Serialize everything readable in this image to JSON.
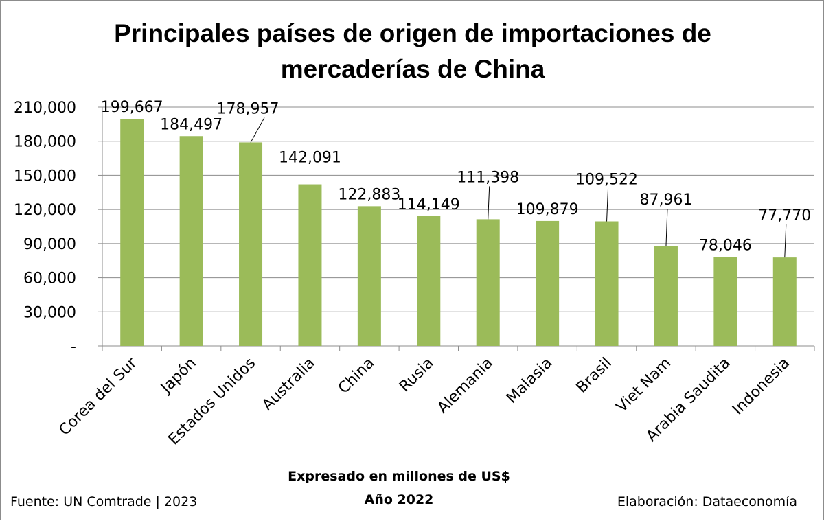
{
  "chart_data": {
    "type": "bar",
    "title_lines": [
      "Principales países de origen de importaciones de",
      "mercaderías de China"
    ],
    "categories": [
      "Corea del Sur",
      "Japón",
      "Estados Unidos",
      "Australia",
      "China",
      "Rusia",
      "Alemania",
      "Malasia",
      "Brasil",
      "Viet Nam",
      "Arabia Saudita",
      "Indonesia"
    ],
    "values": [
      199667,
      184497,
      178957,
      142091,
      122883,
      114149,
      111398,
      109879,
      109522,
      87961,
      78046,
      77770
    ],
    "data_labels": [
      "199,667",
      "184,497",
      "178,957",
      "142,091",
      "122,883",
      "114,149",
      "111,398",
      "109,879",
      "109,522",
      "87,961",
      "78,046",
      "77,770"
    ],
    "y_tick_labels": [
      "-",
      "30,000",
      "60,000",
      "90,000",
      "120,000",
      "150,000",
      "180,000",
      "210,000"
    ],
    "y_ticks": [
      0,
      30000,
      60000,
      90000,
      120000,
      150000,
      180000,
      210000
    ],
    "ylim": [
      0,
      210000
    ],
    "xlabel_lines": [
      "Expresado en millones de US$",
      "Año 2022"
    ],
    "ylabel": "",
    "grid": true,
    "legend": "none",
    "bar_color": "#9bbb59",
    "source": "Fuente: UN Comtrade | 2023",
    "credit": "Elaboración: Dataeconomía"
  }
}
